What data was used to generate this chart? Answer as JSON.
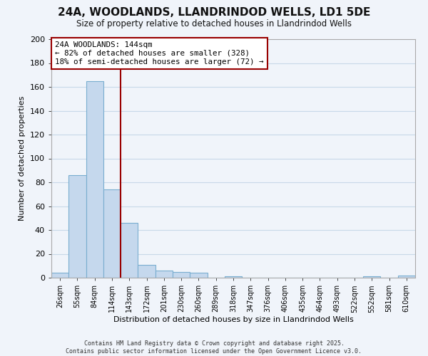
{
  "title": "24A, WOODLANDS, LLANDRINDOD WELLS, LD1 5DE",
  "subtitle": "Size of property relative to detached houses in Llandrindod Wells",
  "xlabel": "Distribution of detached houses by size in Llandrindod Wells",
  "ylabel": "Number of detached properties",
  "categories": [
    "26sqm",
    "55sqm",
    "84sqm",
    "114sqm",
    "143sqm",
    "172sqm",
    "201sqm",
    "230sqm",
    "260sqm",
    "289sqm",
    "318sqm",
    "347sqm",
    "376sqm",
    "406sqm",
    "435sqm",
    "464sqm",
    "493sqm",
    "522sqm",
    "552sqm",
    "581sqm",
    "610sqm"
  ],
  "values": [
    4,
    86,
    165,
    74,
    46,
    11,
    6,
    5,
    4,
    0,
    1,
    0,
    0,
    0,
    0,
    0,
    0,
    0,
    1,
    0,
    2
  ],
  "bar_color": "#c5d8ed",
  "bar_edge_color": "#7aaed0",
  "marker_line_color": "#990000",
  "ylim": [
    0,
    200
  ],
  "yticks": [
    0,
    20,
    40,
    60,
    80,
    100,
    120,
    140,
    160,
    180,
    200
  ],
  "annotation_line1": "24A WOODLANDS: 144sqm",
  "annotation_line2": "← 82% of detached houses are smaller (328)",
  "annotation_line3": "18% of semi-detached houses are larger (72) →",
  "annotation_box_edge_color": "#990000",
  "footer_line1": "Contains HM Land Registry data © Crown copyright and database right 2025.",
  "footer_line2": "Contains public sector information licensed under the Open Government Licence v3.0.",
  "background_color": "#f0f4fa",
  "grid_color": "#c8d8e8"
}
